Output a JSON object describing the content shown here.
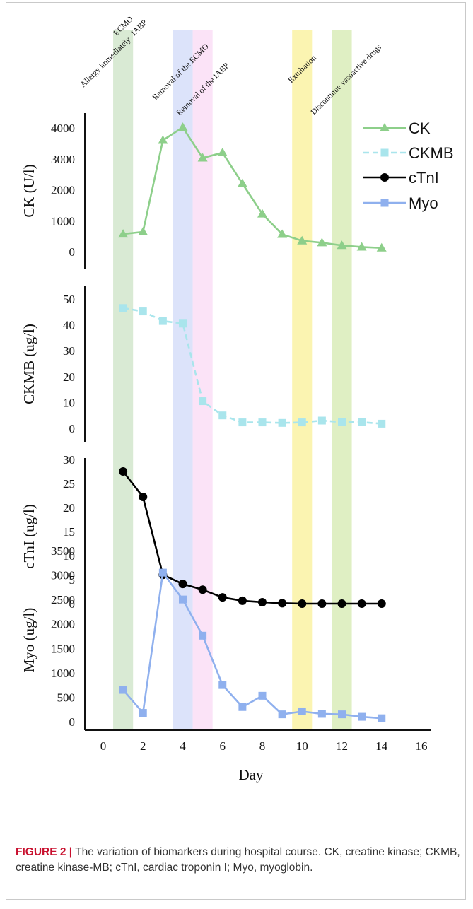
{
  "figure": {
    "label": "FIGURE 2 |",
    "caption": "The variation of biomarkers during hospital course. CK, creatine kinase; CKMB, creatine kinase-MB; cTnI, cardiac troponin I; Myo, myoglobin."
  },
  "chart_data": {
    "type": "line",
    "xlabel": "Day",
    "x_ticks": [
      0,
      2,
      4,
      6,
      8,
      10,
      12,
      14,
      16
    ],
    "xlim": [
      -1.2,
      16
    ],
    "x": [
      1,
      2,
      3,
      4,
      5,
      6,
      7,
      8,
      9,
      10,
      11,
      12,
      13,
      14
    ],
    "events": [
      {
        "label": "Allergy immediately",
        "day": 1
      },
      {
        "label": "ECMO",
        "day": 1,
        "band": [
          0.5,
          1.5
        ],
        "color": "#d5e8cf"
      },
      {
        "label": "IABP",
        "day": 2
      },
      {
        "label": "Removal of the ECMO",
        "day": 4,
        "band": [
          3.5,
          4.5
        ],
        "color": "#d8e0fa"
      },
      {
        "label": "Removal of the IABP",
        "day": 5,
        "band": [
          4.5,
          5.5
        ],
        "color": "#fbe0f6"
      },
      {
        "label": "Extubation",
        "day": 10,
        "band": [
          9.5,
          10.5
        ],
        "color": "#fbf3a8"
      },
      {
        "label": "Discontinue vasoactive drugs",
        "day": 12,
        "band": [
          11.5,
          12.5
        ],
        "color": "#dcedbd"
      }
    ],
    "panels": [
      {
        "name": "CK",
        "ylabel": "CK  (U/l)",
        "ylim": [
          0,
          4000
        ],
        "y_ticks": [
          0,
          1000,
          2000,
          3000,
          4000
        ],
        "color": "#8dcf8a",
        "marker": "triangle",
        "dashed": false,
        "values": [
          570,
          640,
          3600,
          4020,
          3030,
          3200,
          2200,
          1220,
          560,
          350,
          290,
          200,
          150,
          120
        ]
      },
      {
        "name": "CKMB",
        "ylabel": "CKMB  (ug/l)",
        "ylim": [
          0,
          50
        ],
        "y_ticks": [
          0,
          10,
          20,
          30,
          40,
          50
        ],
        "color": "#a9e5ec",
        "marker": "square",
        "dashed": true,
        "values": [
          46.5,
          45.2,
          41.5,
          40.5,
          10.5,
          5.0,
          2.3,
          2.3,
          2.1,
          2.3,
          3.0,
          2.4,
          2.4,
          1.8
        ]
      },
      {
        "name": "cTnI",
        "ylabel": "cTnI  (ug/l)",
        "ylim": [
          0,
          30
        ],
        "y_ticks": [
          0,
          5,
          10,
          15,
          20,
          25,
          30
        ],
        "color": "#000000",
        "marker": "circle",
        "dashed": false,
        "values": [
          27.5,
          22.2,
          6.0,
          4.1,
          2.9,
          1.3,
          0.6,
          0.3,
          0.1,
          0.0,
          0.0,
          0.0,
          0.0,
          0.0
        ]
      },
      {
        "name": "Myo",
        "ylabel": "Myo  (ug/l)",
        "ylim": [
          0,
          3500
        ],
        "y_ticks": [
          0,
          500,
          1000,
          1500,
          2000,
          2500,
          3000,
          3500
        ],
        "color": "#8fb0ee",
        "marker": "square",
        "dashed": false,
        "values": [
          650,
          180,
          3050,
          2500,
          1760,
          750,
          300,
          530,
          150,
          210,
          160,
          150,
          100,
          70
        ]
      }
    ],
    "legend": {
      "placement": "top-right",
      "entries": [
        "CK",
        "CKMB",
        "cTnI",
        "Myo"
      ]
    },
    "grid": false
  }
}
